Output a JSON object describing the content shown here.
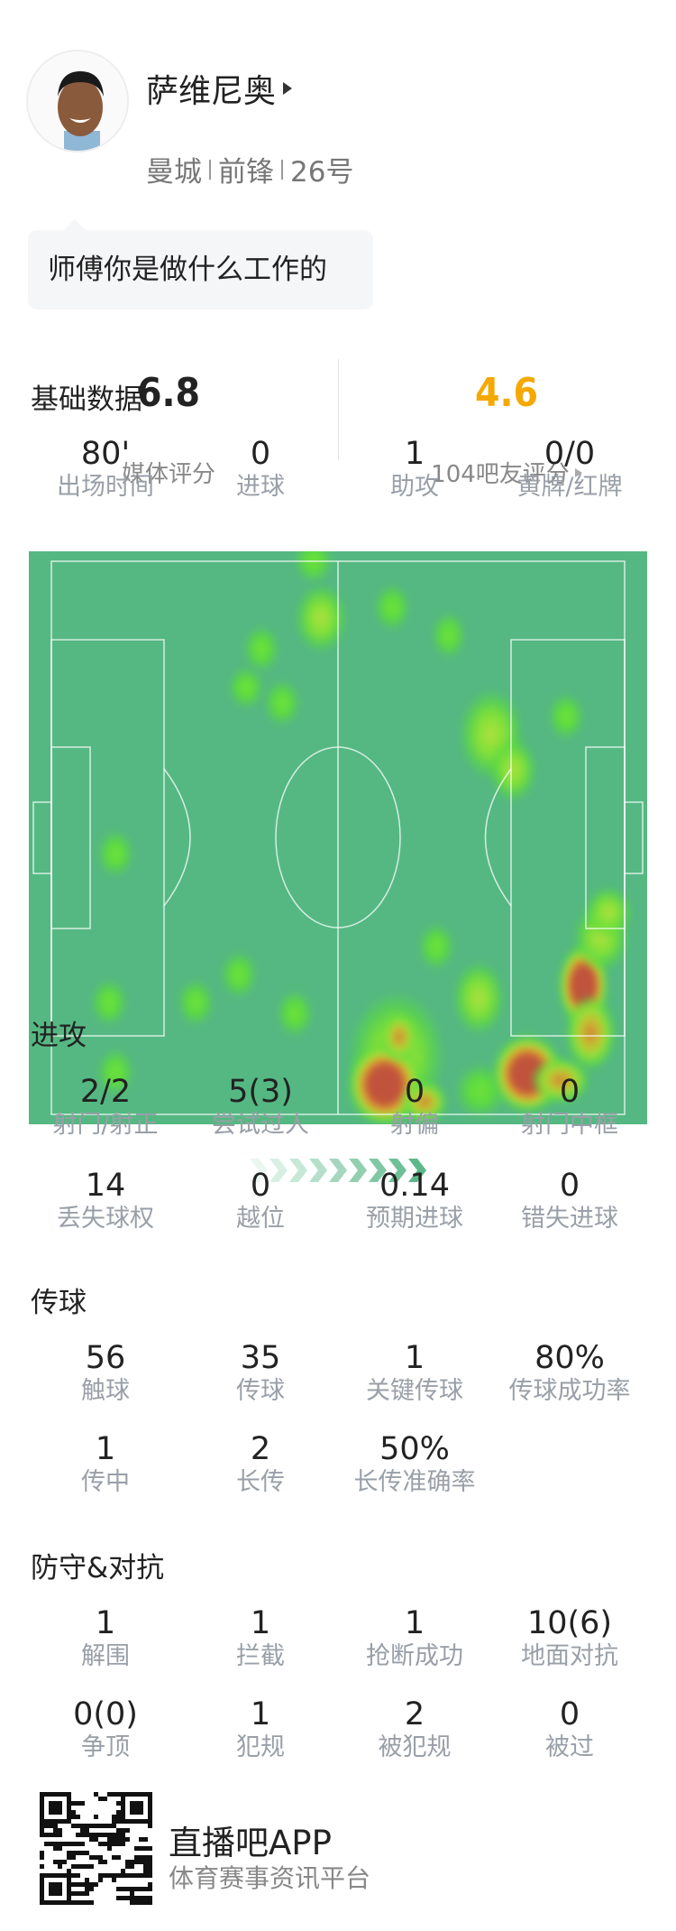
{
  "player": {
    "name": "萨维尼奥",
    "team": "曼城",
    "position": "前锋",
    "number": "26号",
    "bubble": "师傅你是做什么工作的"
  },
  "ratings": {
    "media_value": "6.8",
    "media_label": "媒体评分",
    "fan_value": "4.6",
    "fan_label": "104吧友评分",
    "fan_color": "#f5a900"
  },
  "basic": {
    "title": "基础数据",
    "stats": [
      {
        "value": "80'",
        "label": "出场时间"
      },
      {
        "value": "0",
        "label": "进球"
      },
      {
        "value": "1",
        "label": "助攻"
      },
      {
        "value": "0/0",
        "label": "黄牌/红牌"
      }
    ]
  },
  "heatmap": {
    "pitch_color": "#55b882"
  },
  "attack": {
    "title": "进攻",
    "stats": [
      {
        "value": "2/2",
        "label": "射门/射正"
      },
      {
        "value": "5(3)",
        "label": "尝试过人"
      },
      {
        "value": "0",
        "label": "射偏"
      },
      {
        "value": "0",
        "label": "射门中框"
      },
      {
        "value": "14",
        "label": "丢失球权"
      },
      {
        "value": "0",
        "label": "越位"
      },
      {
        "value": "0.14",
        "label": "预期进球"
      },
      {
        "value": "0",
        "label": "错失进球"
      }
    ]
  },
  "passing": {
    "title": "传球",
    "stats": [
      {
        "value": "56",
        "label": "触球"
      },
      {
        "value": "35",
        "label": "传球"
      },
      {
        "value": "1",
        "label": "关键传球"
      },
      {
        "value": "80%",
        "label": "传球成功率"
      },
      {
        "value": "1",
        "label": "传中"
      },
      {
        "value": "2",
        "label": "长传"
      },
      {
        "value": "50%",
        "label": "长传准确率"
      }
    ]
  },
  "defense": {
    "title": "防守&对抗",
    "stats": [
      {
        "value": "1",
        "label": "解围"
      },
      {
        "value": "1",
        "label": "拦截"
      },
      {
        "value": "1",
        "label": "抢断成功"
      },
      {
        "value": "10(6)",
        "label": "地面对抗"
      },
      {
        "value": "0(0)",
        "label": "争顶"
      },
      {
        "value": "1",
        "label": "犯规"
      },
      {
        "value": "2",
        "label": "被犯规"
      },
      {
        "value": "0",
        "label": "被过"
      }
    ]
  },
  "footer": {
    "brand": "直播吧APP",
    "tagline": "体育赛事资讯平台"
  }
}
